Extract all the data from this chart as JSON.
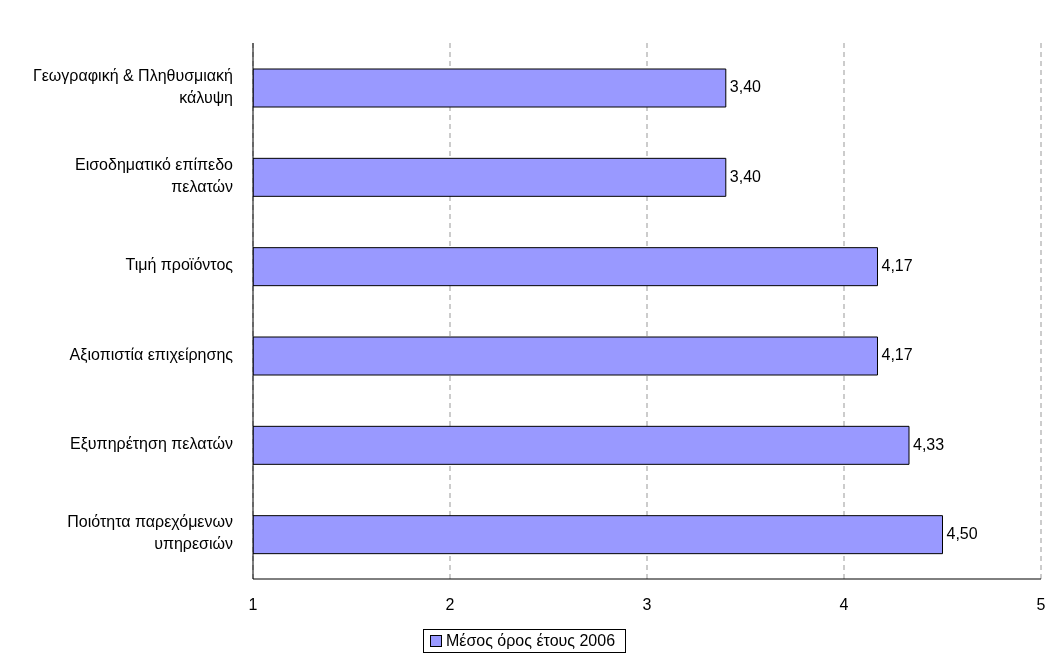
{
  "chart_data": {
    "type": "bar",
    "orientation": "horizontal",
    "categories": [
      "Γεωγραφική & Πληθυσμιακή κάλυψη",
      "Εισοδηματικό επίπεδο πελατών",
      "Τιμή προϊόντος",
      "Αξιοπιστία επιχείρησης",
      "Εξυπηρέτηση πελατών",
      "Ποιότητα παρεχόμενων υπηρεσιών"
    ],
    "series": [
      {
        "name": "Μέσος όρος έτους 2006",
        "color": "#9999ff",
        "values": [
          3.4,
          3.4,
          4.17,
          4.17,
          4.33,
          4.5
        ],
        "value_labels": [
          "3,40",
          "3,40",
          "4,17",
          "4,17",
          "4,33",
          "4,50"
        ]
      }
    ],
    "xlim": [
      1,
      5
    ],
    "xticks": [
      1,
      2,
      3,
      4,
      5
    ],
    "grid": "x",
    "legend": "bottom"
  }
}
